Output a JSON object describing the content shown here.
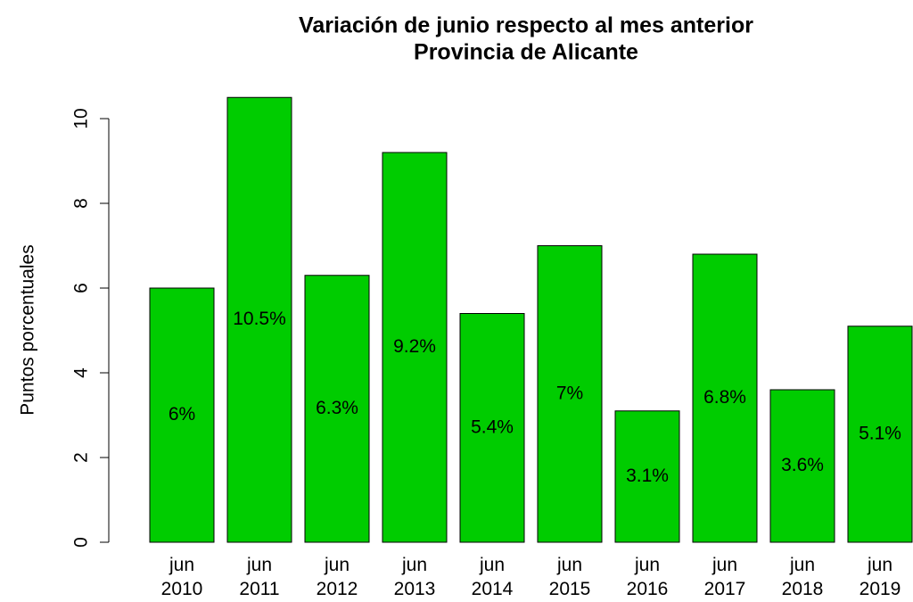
{
  "chart_data": {
    "type": "bar",
    "title": "Variación de junio respecto al mes anterior",
    "subtitle": "Provincia de Alicante",
    "y_label": "Puntos porcentuales",
    "categories": [
      "jun\n2010",
      "jun\n2011",
      "jun\n2012",
      "jun\n2013",
      "jun\n2014",
      "jun\n2015",
      "jun\n2016",
      "jun\n2017",
      "jun\n2018",
      "jun\n2019"
    ],
    "values": [
      6,
      10.5,
      6.3,
      9.2,
      5.4,
      7,
      3.1,
      6.8,
      3.6,
      5.1
    ],
    "value_labels": [
      "6%",
      "10.5%",
      "6.3%",
      "9.2%",
      "5.4%",
      "7%",
      "3.1%",
      "6.8%",
      "3.6%",
      "5.1%"
    ],
    "color": "#00cc00",
    "ylim": [
      0,
      10
    ],
    "yticks": [
      0,
      2,
      4,
      6,
      8,
      10
    ]
  }
}
